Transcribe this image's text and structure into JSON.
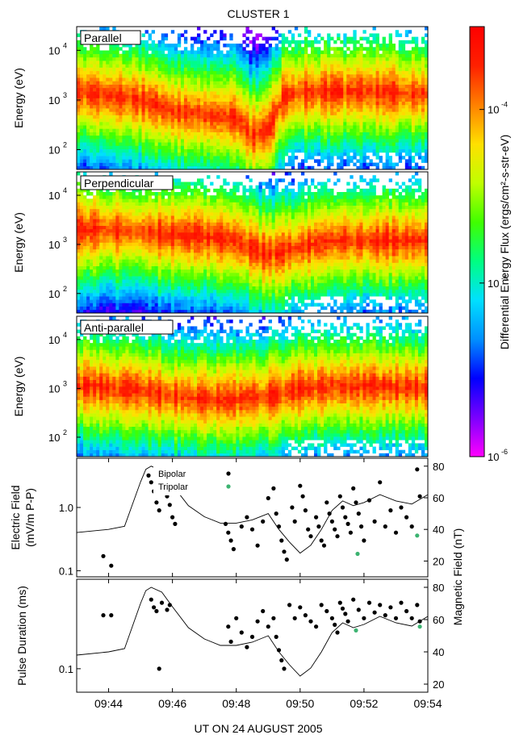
{
  "title": "CLUSTER 1",
  "colorbar": {
    "label": "Differential Energy Flux (ergs/cm²-s-str-eV)",
    "ticks": [
      "10",
      "10",
      "10"
    ],
    "exponents": [
      "-4",
      "-5",
      "-6"
    ],
    "range": [
      1e-06,
      0.0003
    ],
    "colors": [
      "#ff00ff",
      "#7a00ff",
      "#0000ff",
      "#0090ff",
      "#00e0ff",
      "#00ff80",
      "#40ff00",
      "#c0ff00",
      "#ffe000",
      "#ff8000",
      "#ff2000",
      "#ff0000"
    ]
  },
  "chart_data": [
    {
      "type": "heatmap",
      "label": "Parallel",
      "ylabel": "Energy (eV)",
      "yscale": "log",
      "ylim": [
        40,
        30000
      ],
      "yticks": [
        "10",
        "10",
        "10"
      ],
      "ytick_exponents": [
        "4",
        "3",
        "2"
      ],
      "xlim": [
        "09:43",
        "09:54"
      ],
      "peak_energy_profile": {
        "times": [
          "09:43",
          "09:44",
          "09:45",
          "09:46",
          "09:47",
          "09:48",
          "09:48:30",
          "09:49",
          "09:49:30",
          "09:50",
          "09:51",
          "09:52",
          "09:53",
          "09:54"
        ],
        "peak_eV": [
          1500,
          1200,
          1000,
          600,
          500,
          450,
          200,
          250,
          1200,
          1500,
          1500,
          1500,
          1400,
          1300
        ]
      }
    },
    {
      "type": "heatmap",
      "label": "Perpendicular",
      "ylabel": "Energy (eV)",
      "yscale": "log",
      "ylim": [
        40,
        30000
      ],
      "yticks": [
        "10",
        "10",
        "10"
      ],
      "ytick_exponents": [
        "4",
        "3",
        "2"
      ],
      "xlim": [
        "09:43",
        "09:54"
      ],
      "peak_energy_profile": {
        "times": [
          "09:43",
          "09:44",
          "09:45",
          "09:46",
          "09:47",
          "09:48",
          "09:49",
          "09:50",
          "09:51",
          "09:52",
          "09:53",
          "09:54"
        ],
        "peak_eV": [
          2000,
          2000,
          1800,
          1600,
          1500,
          1200,
          600,
          900,
          1200,
          1200,
          1200,
          1200
        ]
      }
    },
    {
      "type": "heatmap",
      "label": "Anti-parallel",
      "ylabel": "Energy (eV)",
      "yscale": "log",
      "ylim": [
        40,
        30000
      ],
      "yticks": [
        "10",
        "10",
        "10"
      ],
      "ytick_exponents": [
        "4",
        "3",
        "2"
      ],
      "xlim": [
        "09:43",
        "09:54"
      ],
      "peak_energy_profile": {
        "times": [
          "09:43",
          "09:44",
          "09:45",
          "09:46",
          "09:47",
          "09:48",
          "09:49",
          "09:50",
          "09:51",
          "09:52",
          "09:53",
          "09:54"
        ],
        "peak_eV": [
          1200,
          1000,
          900,
          700,
          600,
          600,
          700,
          1000,
          1100,
          1100,
          1100,
          1000
        ]
      }
    },
    {
      "type": "scatter",
      "ylabel_left": "Electric Field\n(mV/m P-P)",
      "ylabel_right": "Magnetic Field (nT)",
      "yscale_left": "log",
      "ylim_left": [
        0.08,
        6
      ],
      "yticks_left": [
        "1.0",
        "0.1"
      ],
      "ylim_right": [
        10,
        85
      ],
      "yticks_right": [
        "80",
        "60",
        "40",
        "20"
      ],
      "xlim": [
        "09:43",
        "09:54"
      ],
      "legend": [
        "Bipolar",
        "Tripolar"
      ],
      "series": [
        {
          "name": "Bipolar",
          "color": "#000000",
          "points": [
            [
              "09:43:50",
              0.17
            ],
            [
              "09:44:05",
              0.12
            ],
            [
              "09:45:15",
              3.2
            ],
            [
              "09:45:20",
              2.5
            ],
            [
              "09:45:25",
              1.8
            ],
            [
              "09:45:30",
              1.2
            ],
            [
              "09:45:35",
              0.9
            ],
            [
              "09:45:45",
              3.0
            ],
            [
              "09:45:50",
              1.5
            ],
            [
              "09:45:55",
              1.1
            ],
            [
              "09:46:00",
              0.7
            ],
            [
              "09:46:05",
              0.55
            ],
            [
              "09:47:40",
              0.55
            ],
            [
              "09:47:45",
              0.4
            ],
            [
              "09:47:50",
              0.3
            ],
            [
              "09:47:55",
              0.22
            ],
            [
              "09:48:10",
              0.5
            ],
            [
              "09:48:20",
              0.7
            ],
            [
              "09:48:30",
              0.45
            ],
            [
              "09:48:40",
              0.25
            ],
            [
              "09:48:50",
              0.6
            ],
            [
              "09:49:00",
              1.4
            ],
            [
              "09:49:10",
              2.0
            ],
            [
              "09:49:15",
              0.8
            ],
            [
              "09:49:20",
              0.5
            ],
            [
              "09:49:25",
              0.3
            ],
            [
              "09:49:30",
              0.2
            ],
            [
              "09:49:35",
              0.15
            ],
            [
              "09:49:45",
              1.0
            ],
            [
              "09:49:50",
              0.6
            ],
            [
              "09:50:00",
              2.2
            ],
            [
              "09:50:05",
              1.5
            ],
            [
              "09:50:10",
              0.9
            ],
            [
              "09:50:15",
              0.45
            ],
            [
              "09:50:20",
              0.35
            ],
            [
              "09:50:30",
              0.7
            ],
            [
              "09:50:35",
              0.5
            ],
            [
              "09:50:40",
              0.3
            ],
            [
              "09:50:45",
              0.25
            ],
            [
              "09:50:50",
              1.2
            ],
            [
              "09:50:55",
              0.8
            ],
            [
              "09:51:00",
              0.6
            ],
            [
              "09:51:05",
              0.45
            ],
            [
              "09:51:10",
              0.35
            ],
            [
              "09:51:15",
              1.5
            ],
            [
              "09:51:20",
              1.0
            ],
            [
              "09:51:25",
              0.7
            ],
            [
              "09:51:30",
              0.55
            ],
            [
              "09:51:35",
              0.4
            ],
            [
              "09:51:40",
              2.0
            ],
            [
              "09:51:45",
              1.2
            ],
            [
              "09:51:50",
              0.8
            ],
            [
              "09:51:55",
              0.5
            ],
            [
              "09:52:00",
              0.3
            ],
            [
              "09:52:10",
              1.3
            ],
            [
              "09:52:20",
              0.6
            ],
            [
              "09:52:30",
              2.5
            ],
            [
              "09:52:40",
              0.5
            ],
            [
              "09:52:50",
              0.9
            ],
            [
              "09:53:00",
              0.4
            ],
            [
              "09:53:10",
              1.0
            ],
            [
              "09:53:20",
              0.7
            ],
            [
              "09:53:30",
              0.5
            ],
            [
              "09:53:40",
              4.0
            ],
            [
              "09:53:45",
              1.5
            ]
          ]
        },
        {
          "name": "Tripolar",
          "color": "#3cb371",
          "points": [
            [
              "09:51:48",
              0.185
            ],
            [
              "09:53:40",
              0.36
            ]
          ]
        }
      ]
    },
    {
      "type": "scatter",
      "ylabel_left": "Pulse Duration (ms)",
      "ylabel_right": "Magnetic Field (nT)",
      "yscale_left": "log",
      "ylim_left": [
        0.06,
        0.7
      ],
      "yticks_left": [
        "0.1"
      ],
      "ylim_right": [
        15,
        85
      ],
      "yticks_right": [
        "80",
        "60",
        "40",
        "20"
      ],
      "xlim": [
        "09:43",
        "09:54"
      ],
      "xticks": [
        "09:44",
        "09:46",
        "09:48",
        "09:50",
        "09:52",
        "09:54"
      ],
      "xlabel": "UT ON 24 AUGUST 2005",
      "series": [
        {
          "name": "Bipolar",
          "color": "#000000",
          "points": [
            [
              "09:43:50",
              0.32
            ],
            [
              "09:44:05",
              0.32
            ],
            [
              "09:45:20",
              0.45
            ],
            [
              "09:45:25",
              0.38
            ],
            [
              "09:45:30",
              0.35
            ],
            [
              "09:45:40",
              0.42
            ],
            [
              "09:45:50",
              0.36
            ],
            [
              "09:45:55",
              0.4
            ],
            [
              "09:45:35",
              0.1
            ],
            [
              "09:47:45",
              0.25
            ],
            [
              "09:47:50",
              0.18
            ],
            [
              "09:48:00",
              0.3
            ],
            [
              "09:48:10",
              0.22
            ],
            [
              "09:48:20",
              0.16
            ],
            [
              "09:48:30",
              0.2
            ],
            [
              "09:48:40",
              0.28
            ],
            [
              "09:48:50",
              0.35
            ],
            [
              "09:49:00",
              0.25
            ],
            [
              "09:49:10",
              0.3
            ],
            [
              "09:49:15",
              0.2
            ],
            [
              "09:49:20",
              0.15
            ],
            [
              "09:49:25",
              0.12
            ],
            [
              "09:49:30",
              0.1
            ],
            [
              "09:49:40",
              0.4
            ],
            [
              "09:49:50",
              0.3
            ],
            [
              "09:50:00",
              0.38
            ],
            [
              "09:50:10",
              0.32
            ],
            [
              "09:50:20",
              0.28
            ],
            [
              "09:50:30",
              0.25
            ],
            [
              "09:50:40",
              0.4
            ],
            [
              "09:50:50",
              0.35
            ],
            [
              "09:51:00",
              0.3
            ],
            [
              "09:51:05",
              0.26
            ],
            [
              "09:51:10",
              0.22
            ],
            [
              "09:51:15",
              0.42
            ],
            [
              "09:51:20",
              0.37
            ],
            [
              "09:51:25",
              0.33
            ],
            [
              "09:51:30",
              0.28
            ],
            [
              "09:51:40",
              0.45
            ],
            [
              "09:51:50",
              0.36
            ],
            [
              "09:52:00",
              0.3
            ],
            [
              "09:52:10",
              0.42
            ],
            [
              "09:52:20",
              0.34
            ],
            [
              "09:52:30",
              0.4
            ],
            [
              "09:52:40",
              0.32
            ],
            [
              "09:52:50",
              0.38
            ],
            [
              "09:53:00",
              0.3
            ],
            [
              "09:53:10",
              0.42
            ],
            [
              "09:53:20",
              0.35
            ],
            [
              "09:53:30",
              0.3
            ],
            [
              "09:53:40",
              0.4
            ],
            [
              "09:53:45",
              0.28
            ]
          ]
        },
        {
          "name": "Tripolar",
          "color": "#3cb371",
          "points": [
            [
              "09:51:45",
              0.23
            ],
            [
              "09:53:45",
              0.25
            ]
          ]
        }
      ]
    }
  ],
  "magnetic_field": {
    "times": [
      "09:43",
      "09:44",
      "09:44:30",
      "09:45",
      "09:45:10",
      "09:45:20",
      "09:45:40",
      "09:46",
      "09:46:30",
      "09:47",
      "09:47:30",
      "09:48",
      "09:48:30",
      "09:49",
      "09:49:20",
      "09:49:40",
      "09:50",
      "09:50:20",
      "09:50:40",
      "09:51",
      "09:51:20",
      "09:51:40",
      "09:52",
      "09:52:30",
      "09:53",
      "09:53:30",
      "09:54"
    ],
    "nT": [
      38,
      40,
      42,
      70,
      78,
      80,
      77,
      68,
      55,
      48,
      44,
      44,
      46,
      50,
      40,
      32,
      25,
      30,
      40,
      52,
      58,
      55,
      57,
      62,
      58,
      56,
      62
    ]
  }
}
